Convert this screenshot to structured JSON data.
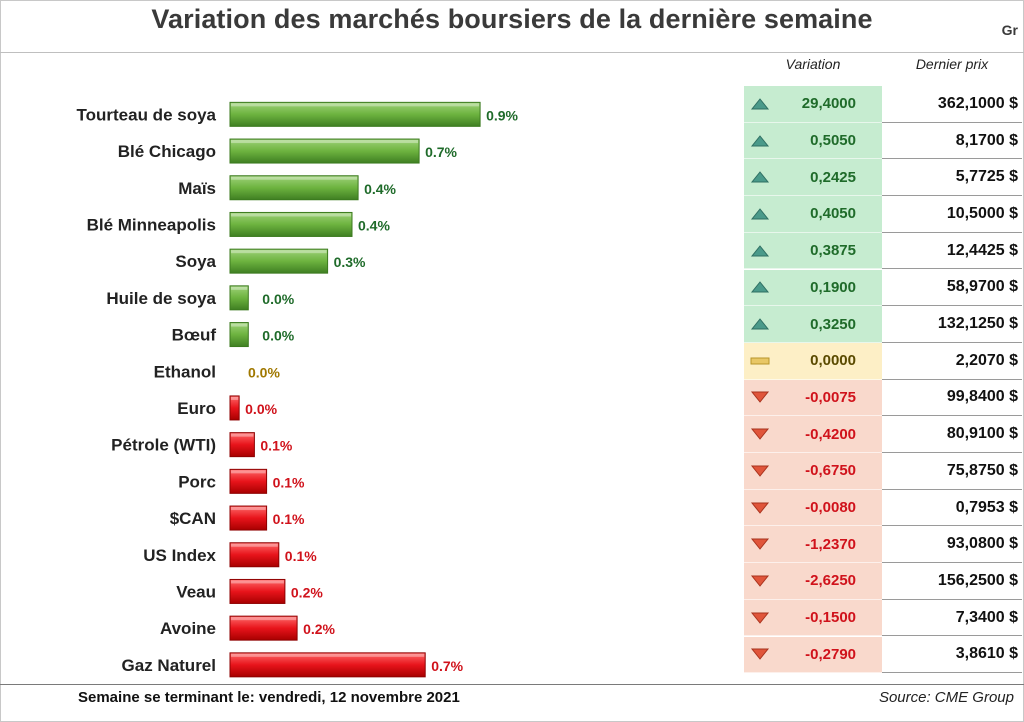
{
  "title": "Variation des marchés boursiers de la dernière semaine",
  "corner_text": "Gr",
  "columns": {
    "variation": "Variation",
    "price": "Dernier prix"
  },
  "footer": {
    "left": "Semaine se terminant le:  vendredi, 12 novembre 2021",
    "right": "Source: CME Group"
  },
  "colors": {
    "up": "#6db33f",
    "flat": "#a07800",
    "down": "#e8141b",
    "up_text": "#1f6b2a",
    "down_text": "#d0121b"
  },
  "chart_data": {
    "type": "bar",
    "orientation": "horizontal",
    "categories": [
      "Tourteau de soya",
      "Blé Chicago",
      "Maïs",
      "Blé Minneapolis",
      "Soya",
      "Huile de soya",
      "Bœuf",
      "Ethanol",
      "Euro",
      "Pétrole (WTI)",
      "Porc",
      "$CAN",
      "US Index",
      "Veau",
      "Avoine",
      "Gaz Naturel"
    ],
    "values": [
      0.9,
      0.7,
      0.4,
      0.4,
      0.3,
      0.0,
      0.0,
      0.0,
      -0.0,
      -0.1,
      -0.1,
      -0.1,
      -0.1,
      -0.2,
      -0.2,
      -0.7
    ],
    "bar_magnitudes": [
      0.82,
      0.62,
      0.42,
      0.4,
      0.32,
      0.06,
      0.06,
      0.0,
      0.03,
      0.08,
      0.12,
      0.12,
      0.16,
      0.18,
      0.22,
      0.64
    ],
    "labels": [
      "0.9%",
      "0.7%",
      "0.4%",
      "0.4%",
      "0.3%",
      "0.0%",
      "0.0%",
      "0.0%",
      "0.0%",
      "0.1%",
      "0.1%",
      "0.1%",
      "0.1%",
      "0.2%",
      "0.2%",
      "0.7%"
    ],
    "direction": [
      "up",
      "up",
      "up",
      "up",
      "up",
      "up",
      "up",
      "flat",
      "down",
      "down",
      "down",
      "down",
      "down",
      "down",
      "down",
      "down"
    ],
    "table": {
      "variation": [
        "29,4000",
        "0,5050",
        "0,2425",
        "0,4050",
        "0,3875",
        "0,1900",
        "0,3250",
        "0,0000",
        "-0,0075",
        "-0,4200",
        "-0,6750",
        "-0,0080",
        "-1,2370",
        "-2,6250",
        "-0,1500",
        "-0,2790"
      ],
      "price": [
        "362,1000 $",
        "8,1700 $",
        "5,7725 $",
        "10,5000 $",
        "12,4425 $",
        "58,9700 $",
        "132,1250 $",
        "2,2070 $",
        "99,8400 $",
        "80,9100 $",
        "75,8750 $",
        "0,7953 $",
        "93,0800 $",
        "156,2500 $",
        "7,3400 $",
        "3,8610 $"
      ]
    }
  }
}
